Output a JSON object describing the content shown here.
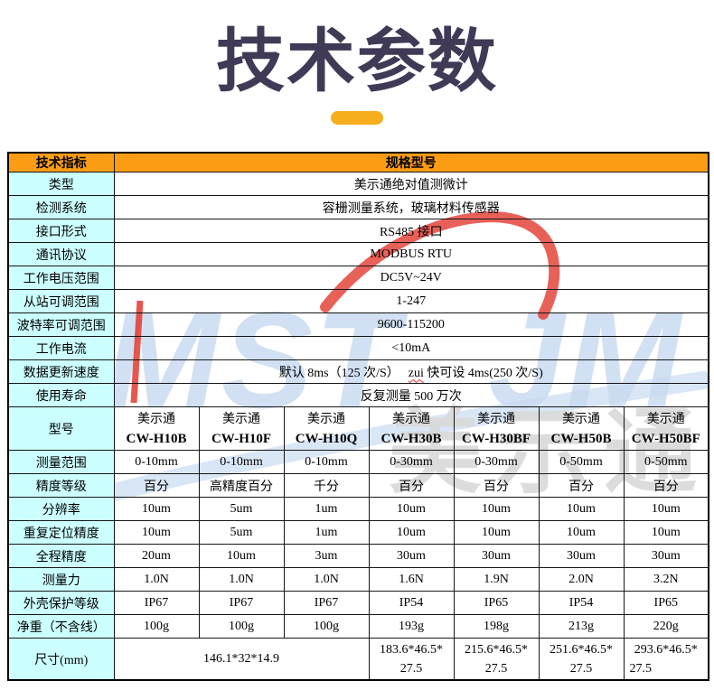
{
  "title": "技术参数",
  "accent": {
    "title_color": "#403a56",
    "pill_color": "#f6ae1c",
    "header_bg": "#fb9c15",
    "label_bg": "#ccffff"
  },
  "watermark": {
    "logo_left": "MST",
    "logo_right": "JM",
    "brand": "美示通",
    "blue": "#c9dbf1",
    "red": "#e23a30",
    "gray": "#d9d9d9"
  },
  "table": {
    "header": {
      "indicator": "技术指标",
      "spec": "规格型号"
    },
    "spec_rows": [
      {
        "label": "类型",
        "value": "美示通绝对值测微计"
      },
      {
        "label": "检测系统",
        "value": "容栅测量系统，玻璃材料传感器"
      },
      {
        "label": "接口形式",
        "value": "RS485 接口"
      },
      {
        "label": "通讯协议",
        "value": "MODBUS RTU"
      },
      {
        "label": "工作电压范围",
        "value": "DC5V~24V"
      },
      {
        "label": "从站可调范围",
        "value": "1-247"
      },
      {
        "label": "波特率可调范围",
        "value": "9600-115200"
      },
      {
        "label": "工作电流",
        "value": "<10mA"
      },
      {
        "label": "数据更新速度",
        "value_prefix": "默认 8ms（125 次/S）",
        "value_wavy": "zui",
        "value_suffix": " 快可设 4ms(250 次/S)"
      },
      {
        "label": "使用寿命",
        "value": "反复测量 500 万次"
      }
    ],
    "model_row": {
      "label": "型号",
      "brand": "美示通",
      "models": [
        "CW-H10B",
        "CW-H10F",
        "CW-H10Q",
        "CW-H30B",
        "CW-H30BF",
        "CW-H50B",
        "CW-H50BF"
      ]
    },
    "param_rows": [
      {
        "label": "测量范围",
        "values": [
          "0-10mm",
          "0-10mm",
          "0-10mm",
          "0-30mm",
          "0-30mm",
          "0-50mm",
          "0-50mm"
        ]
      },
      {
        "label": "精度等级",
        "values": [
          "百分",
          "高精度百分",
          "千分",
          "百分",
          "百分",
          "百分",
          "百分"
        ]
      },
      {
        "label": "分辨率",
        "values": [
          "10um",
          "5um",
          "1um",
          "10um",
          "10um",
          "10um",
          "10um"
        ]
      },
      {
        "label": "重复定位精度",
        "values": [
          "10um",
          "5um",
          "1um",
          "10um",
          "10um",
          "10um",
          "10um"
        ]
      },
      {
        "label": "全程精度",
        "values": [
          "20um",
          "10um",
          "3um",
          "30um",
          "30um",
          "30um",
          "30um"
        ]
      },
      {
        "label": "测量力",
        "values": [
          "1.0N",
          "1.0N",
          "1.0N",
          "1.6N",
          "1.9N",
          "2.0N",
          "3.2N"
        ]
      },
      {
        "label": "外壳保护等级",
        "values": [
          "IP67",
          "IP67",
          "IP67",
          "IP54",
          "IP65",
          "IP54",
          "IP65"
        ]
      },
      {
        "label": "净重（不含线）",
        "values": [
          "100g",
          "100g",
          "100g",
          "193g",
          "198g",
          "213g",
          "220g"
        ]
      }
    ],
    "size_row": {
      "label": "尺寸(mm)",
      "merged_value": "146.1*32*14.9",
      "merged_span": 3,
      "values": [
        {
          "l1": "183.6*46.5*",
          "l2": "27.5"
        },
        {
          "l1": "215.6*46.5*",
          "l2": "27.5"
        },
        {
          "l1": "251.6*46.5*",
          "l2": "27.5"
        },
        {
          "l1": "293.6*46.5*",
          "l2": "27.5"
        }
      ]
    }
  }
}
